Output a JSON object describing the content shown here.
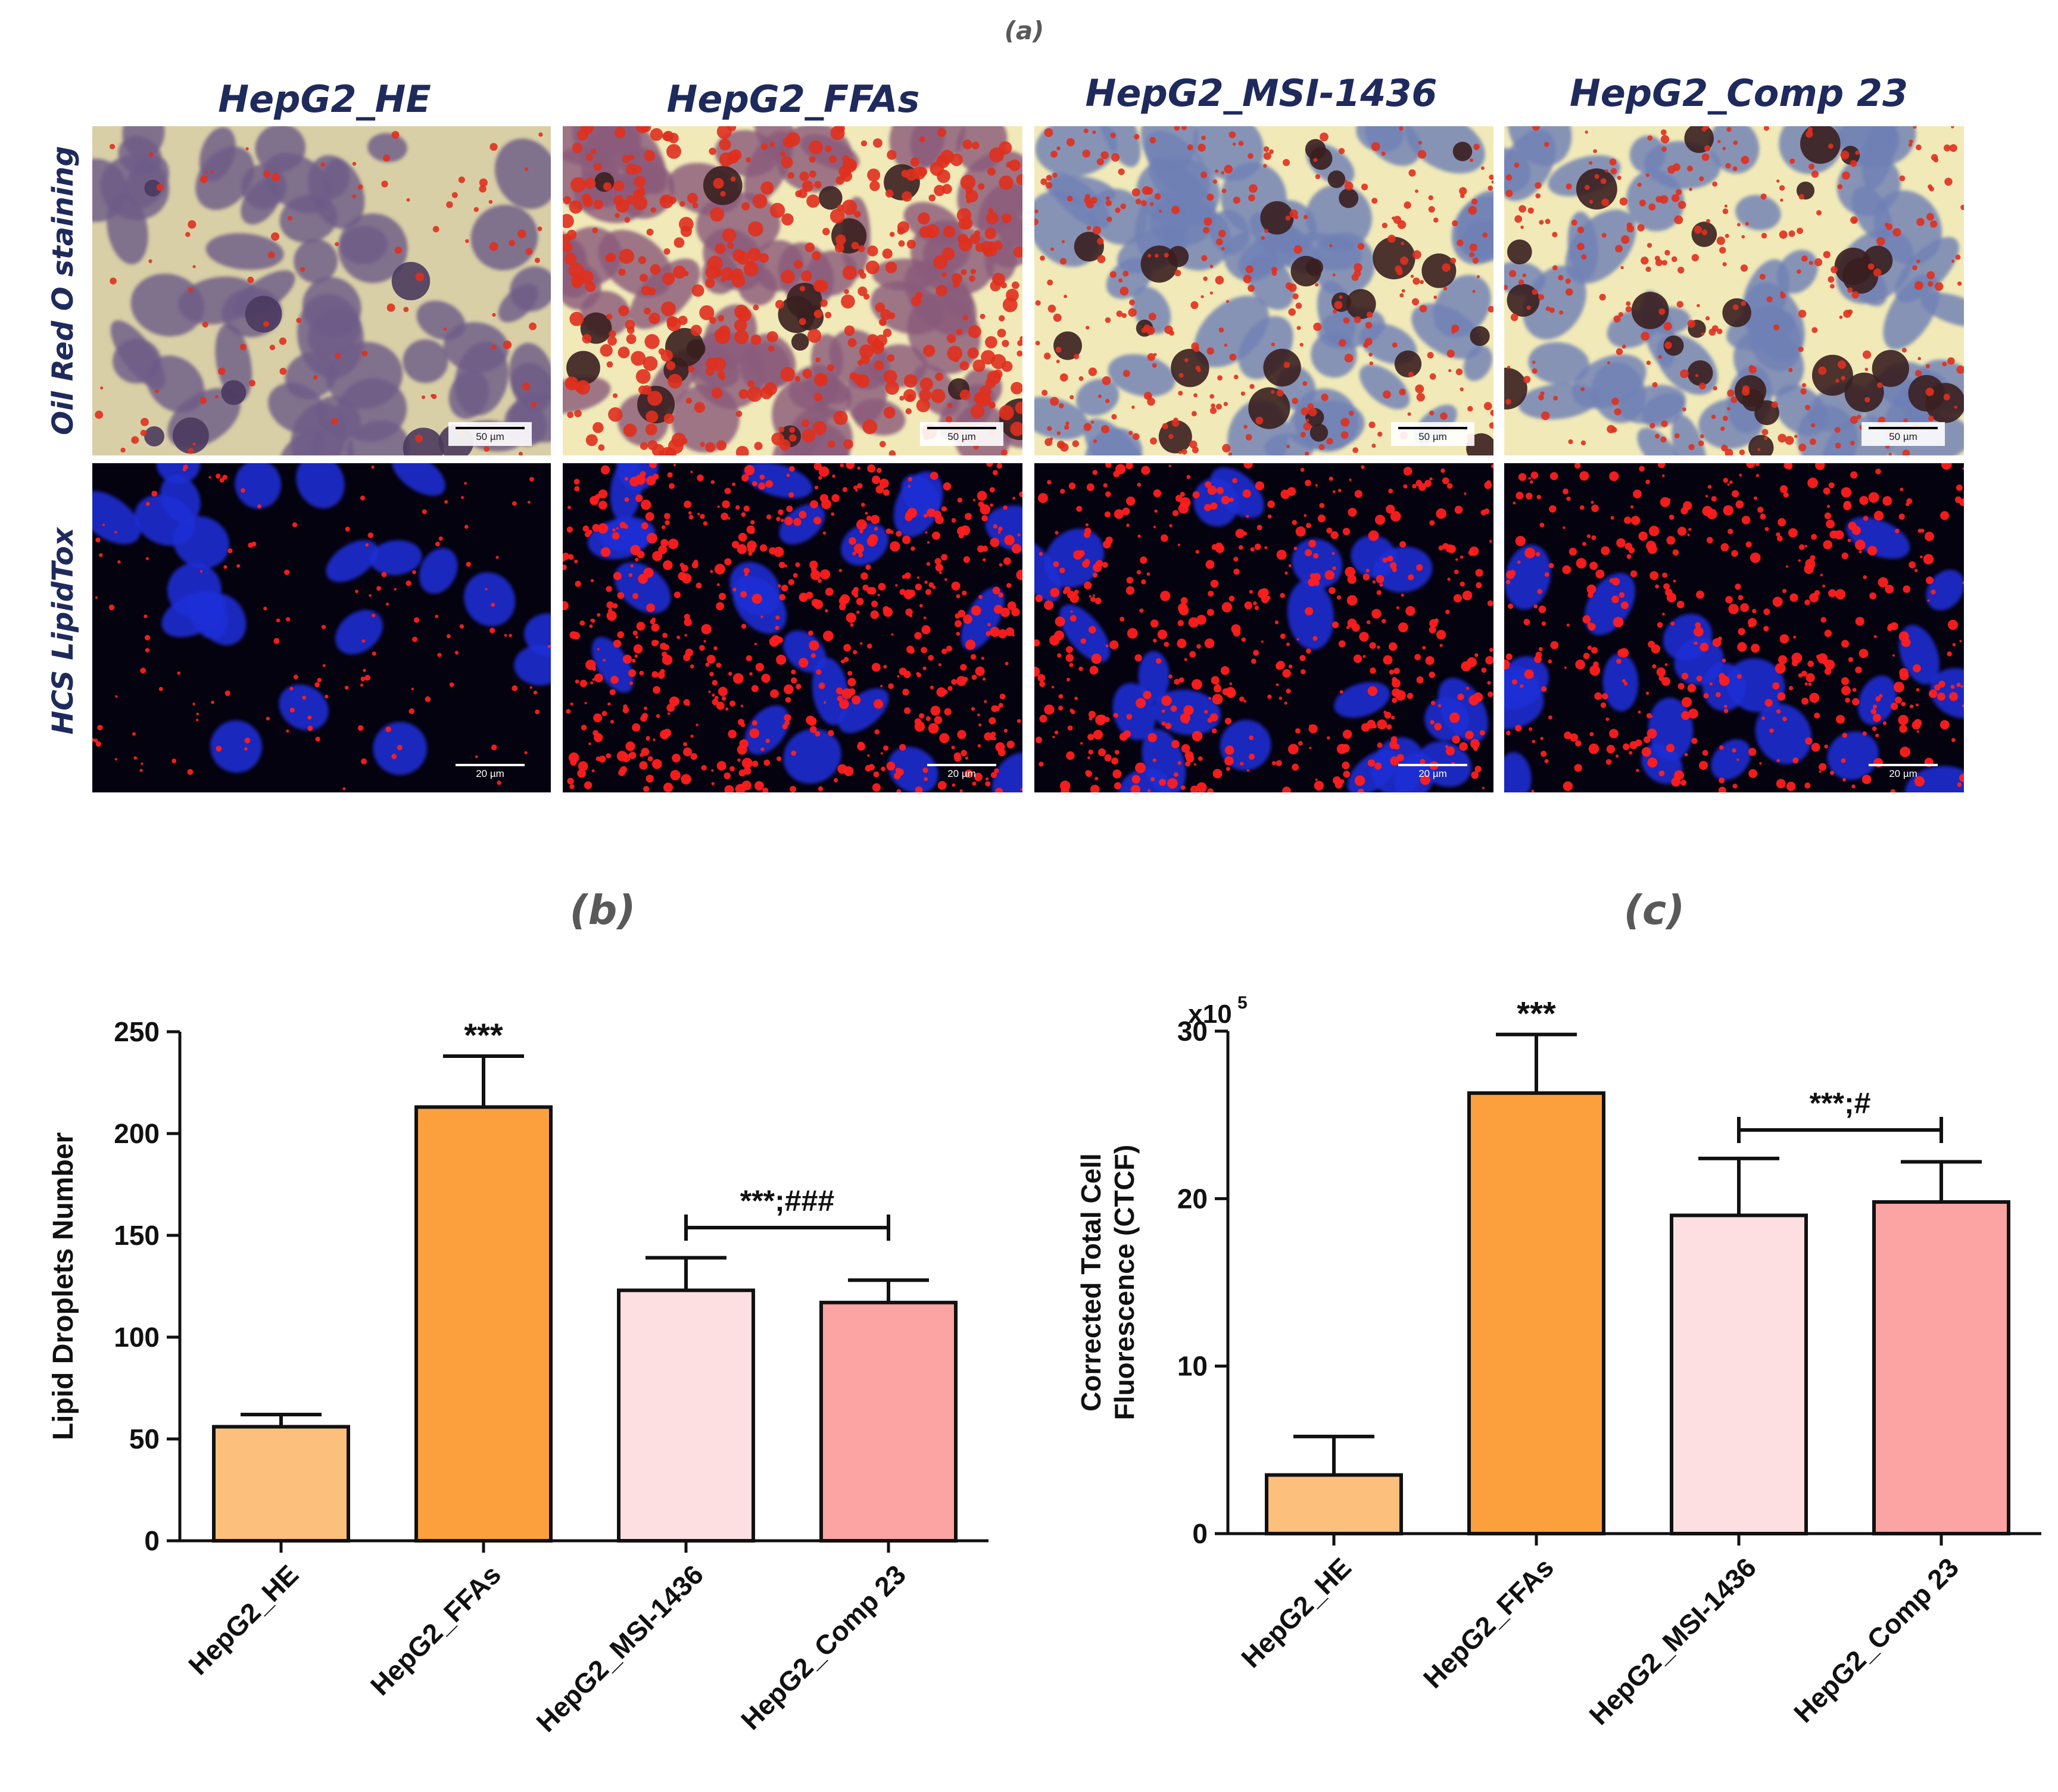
{
  "figure": {
    "panel_a_label": "(a)",
    "panel_b_label": "(b)",
    "panel_c_label": "(c)",
    "micrographs": {
      "columns": [
        "HepG2_HE",
        "HepG2_FFAs",
        "HepG2_MSI-1436",
        "HepG2_Comp 23"
      ],
      "rows": [
        {
          "label": "Oil Red O staining",
          "scale_bar": "50 µm",
          "style": "oil-red-o"
        },
        {
          "label": "HCS LipidTox",
          "scale_bar": "20 µm",
          "style": "lipidtox"
        }
      ],
      "colors": {
        "oil_bg_HE": "#d9cfa6",
        "oil_bg": "#f1eab8",
        "cell_purple": "#6e5b88",
        "cell_blue": "#6f80b4",
        "droplet_red": "#e0301e",
        "dark_brown": "#3a1f1f",
        "fluor_bg": "#05020f",
        "nucleus_blue": "#1f2fd6",
        "fluor_red": "#ff1e1e"
      },
      "lipid_density": [
        0.12,
        0.95,
        0.7,
        0.62
      ]
    }
  },
  "chart_data": [
    {
      "type": "bar",
      "panel": "(b)",
      "categories": [
        "HepG2_HE",
        "HepG2_FFAs",
        "HepG2_MSI-1436",
        "HepG2_Comp 23"
      ],
      "series": [
        {
          "values": [
            56,
            213,
            123,
            117
          ],
          "error": [
            6,
            25,
            16,
            11
          ]
        }
      ],
      "bar_colors": [
        "#fdbf7c",
        "#fca03e",
        "#fddfe2",
        "#fca3a4"
      ],
      "xlabel": "",
      "ylabel": "Lipid Droplets Number",
      "ylim": [
        0,
        250
      ],
      "yticks": [
        0,
        50,
        100,
        150,
        200,
        250
      ],
      "multiplier_label": "",
      "grid": false,
      "annotations": [
        {
          "text": "***",
          "over": 1
        },
        {
          "text": "***;###",
          "bracket": [
            2,
            3
          ]
        }
      ]
    },
    {
      "type": "bar",
      "panel": "(c)",
      "categories": [
        "HepG2_HE",
        "HepG2_FFAs",
        "HepG2_MSI-1436",
        "HepG2_Comp 23"
      ],
      "series": [
        {
          "values": [
            3.5,
            26.3,
            19.0,
            19.8
          ],
          "error": [
            2.3,
            3.5,
            3.4,
            2.4
          ]
        }
      ],
      "bar_colors": [
        "#fdbf7c",
        "#fca03e",
        "#fddfe2",
        "#fca3a4"
      ],
      "xlabel": "",
      "ylabel": "Corrected Total Cell Fluorescence (CTCF)",
      "ylabel_lines": [
        "Corrected Total Cell",
        "Fluorescence (CTCF)"
      ],
      "ylim": [
        0,
        30
      ],
      "yticks": [
        0,
        10,
        20,
        30
      ],
      "multiplier_label": "x10",
      "multiplier_exp": "5",
      "grid": false,
      "annotations": [
        {
          "text": "***",
          "over": 1
        },
        {
          "text": "***;#",
          "bracket": [
            2,
            3
          ]
        }
      ]
    }
  ]
}
